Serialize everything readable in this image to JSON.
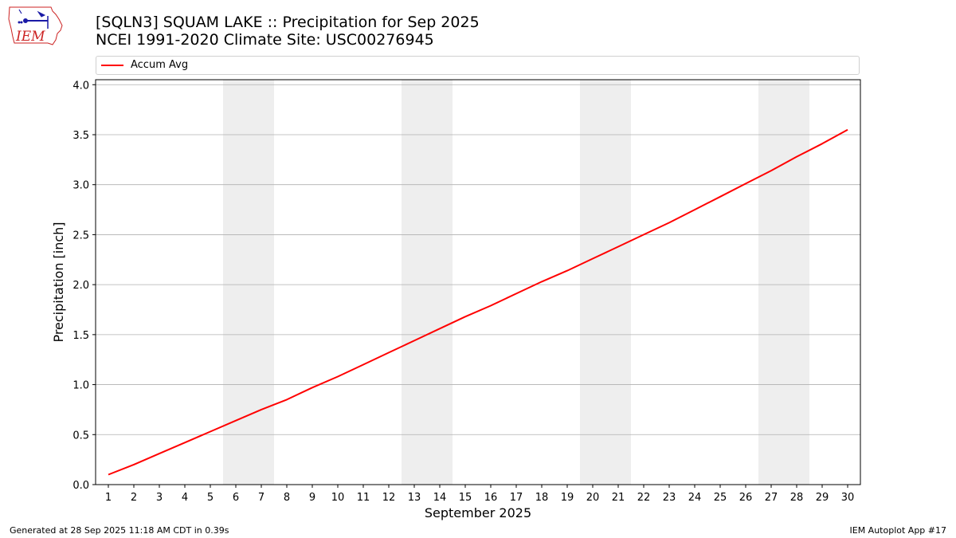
{
  "header": {
    "title_line1": "[SQLN3] SQUAM LAKE :: Precipitation for Sep 2025",
    "title_line2": "NCEI 1991-2020 Climate Site: USC00276945",
    "logo_text": "IEM"
  },
  "footer": {
    "left": "Generated at 28 Sep 2025 11:18 AM CDT in 0.39s",
    "right": "IEM Autoplot App #17"
  },
  "colors": {
    "line": "#ff0000",
    "weekend_band": "#eeeeee",
    "grid": "#b0b0b0",
    "logo_red": "#cc2222",
    "logo_blue": "#1a1aa6"
  },
  "chart_data": {
    "type": "line",
    "xlabel": "September 2025",
    "ylabel": "Precipitation [inch]",
    "x": [
      1,
      2,
      3,
      4,
      5,
      6,
      7,
      8,
      9,
      10,
      11,
      12,
      13,
      14,
      15,
      16,
      17,
      18,
      19,
      20,
      21,
      22,
      23,
      24,
      25,
      26,
      27,
      28,
      29,
      30
    ],
    "xlim": [
      0.5,
      30.5
    ],
    "ylim": [
      0,
      4.05
    ],
    "yticks": [
      "0.0",
      "0.5",
      "1.0",
      "1.5",
      "2.0",
      "2.5",
      "3.0",
      "3.5",
      "4.0"
    ],
    "grid": "y",
    "legend_placement": "top, above plot",
    "weekend_bands": [
      [
        6,
        7
      ],
      [
        13,
        14
      ],
      [
        20,
        21
      ],
      [
        27,
        28
      ]
    ],
    "series": [
      {
        "name": "Accum Avg",
        "color": "#ff0000",
        "values": [
          0.1,
          0.2,
          0.31,
          0.42,
          0.53,
          0.64,
          0.75,
          0.85,
          0.97,
          1.08,
          1.2,
          1.32,
          1.44,
          1.56,
          1.68,
          1.79,
          1.91,
          2.03,
          2.14,
          2.26,
          2.38,
          2.5,
          2.62,
          2.75,
          2.88,
          3.01,
          3.14,
          3.28,
          3.41,
          3.55
        ]
      }
    ]
  }
}
